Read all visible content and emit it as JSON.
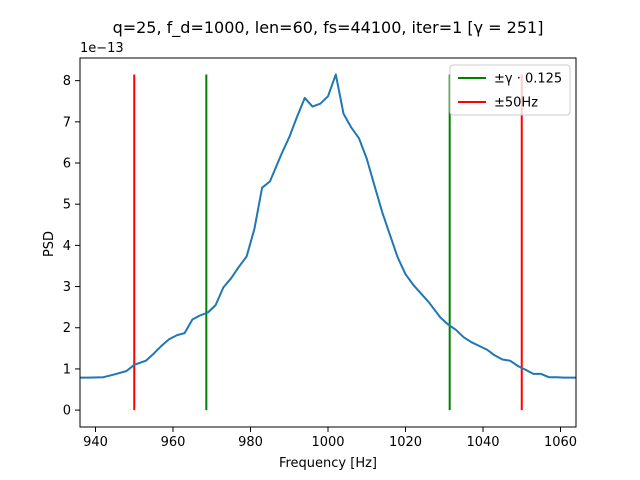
{
  "chart_data": {
    "type": "line",
    "title": "q=25, f_d=1000, len=60, fs=44100, iter=1 [γ = 251]",
    "xlabel": "Frequency [Hz]",
    "ylabel": "PSD",
    "y_scale_label": "1e−13",
    "xlim": [
      936,
      1064
    ],
    "ylim": [
      -0.41,
      8.55
    ],
    "x_ticks": [
      940,
      960,
      980,
      1000,
      1020,
      1040,
      1060
    ],
    "y_ticks": [
      0,
      1,
      2,
      3,
      4,
      5,
      6,
      7,
      8
    ],
    "grid": false,
    "legend_position": "top-right",
    "series": [
      {
        "color": "#1f77b4",
        "x": [
          936,
          938,
          942,
          945,
          948,
          950,
          953,
          955,
          957,
          959,
          961,
          963,
          965,
          967,
          969,
          971,
          973,
          975,
          977,
          979,
          981,
          983,
          985,
          988,
          990,
          992,
          994,
          996,
          998,
          1000,
          1002,
          1004,
          1006,
          1008,
          1010,
          1012,
          1014,
          1016,
          1018,
          1020,
          1022,
          1026,
          1029,
          1031,
          1033,
          1035,
          1037,
          1039,
          1041,
          1043,
          1045,
          1047,
          1049,
          1051,
          1053,
          1055,
          1057,
          1059,
          1061,
          1064
        ],
        "y": [
          0.79,
          0.79,
          0.8,
          0.87,
          0.95,
          1.1,
          1.2,
          1.37,
          1.56,
          1.72,
          1.82,
          1.87,
          2.2,
          2.3,
          2.37,
          2.55,
          2.98,
          3.2,
          3.48,
          3.73,
          4.4,
          5.4,
          5.55,
          6.22,
          6.63,
          7.12,
          7.58,
          7.37,
          7.44,
          7.62,
          8.15,
          7.2,
          6.86,
          6.6,
          6.1,
          5.45,
          4.8,
          4.25,
          3.7,
          3.3,
          3.04,
          2.62,
          2.25,
          2.08,
          1.95,
          1.77,
          1.65,
          1.56,
          1.47,
          1.33,
          1.23,
          1.2,
          1.07,
          0.98,
          0.88,
          0.88,
          0.8,
          0.8,
          0.79,
          0.79
        ]
      }
    ],
    "vlines": [
      {
        "name": "±γ · 0.125",
        "color": "#008000",
        "x": [
          968.6,
          1031.4
        ],
        "y": [
          0,
          8.15
        ]
      },
      {
        "name": "±50Hz",
        "color": "#ff0000",
        "x": [
          950,
          1050
        ],
        "y": [
          0,
          8.15
        ]
      }
    ]
  }
}
